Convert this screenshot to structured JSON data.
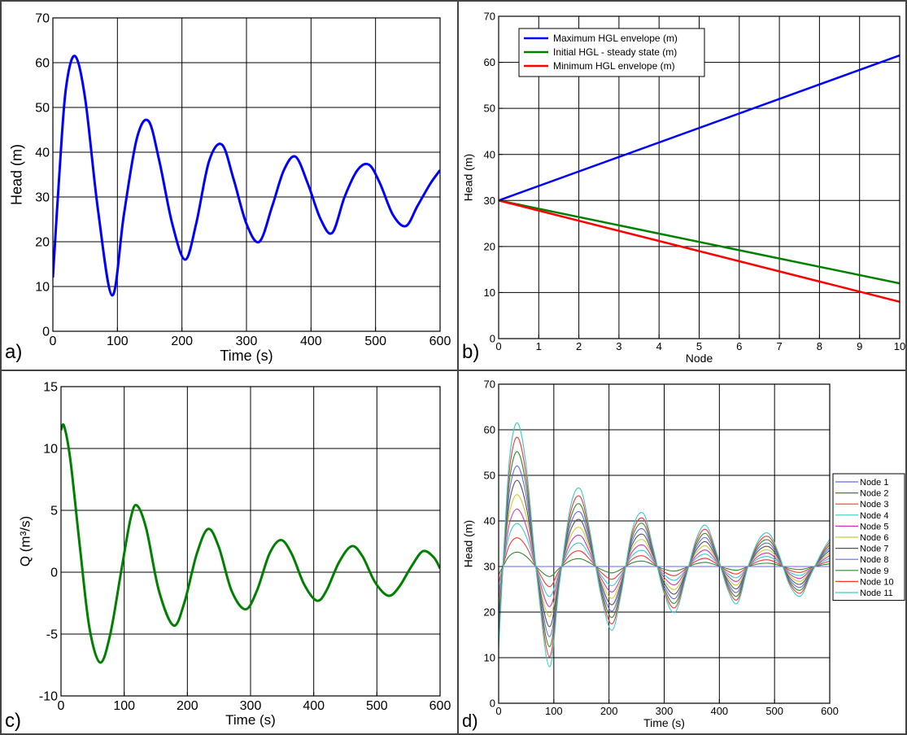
{
  "chart_data": [
    {
      "panel": "a)",
      "type": "line",
      "xlabel": "Time (s)",
      "ylabel": "Head (m)",
      "xlim": [
        0,
        600
      ],
      "ylim": [
        0,
        70
      ],
      "xticks": [
        0,
        100,
        200,
        300,
        400,
        500,
        600
      ],
      "yticks": [
        0,
        10,
        20,
        30,
        40,
        50,
        60,
        70
      ],
      "grid": true,
      "series": [
        {
          "color": "#0000ff",
          "x": [
            0,
            10,
            20,
            34,
            50,
            70,
            92,
            110,
            130,
            148,
            165,
            185,
            205,
            222,
            242,
            262,
            280,
            300,
            320,
            340,
            358,
            376,
            395,
            415,
            433,
            452,
            472,
            490,
            507,
            527,
            547,
            565,
            585,
            600
          ],
          "y": [
            12,
            35,
            54,
            61.5,
            52,
            27,
            8,
            26,
            43,
            47,
            38,
            24,
            16,
            24,
            38,
            41.7,
            34,
            24,
            20,
            28,
            36,
            39,
            33,
            25,
            22,
            30,
            36,
            37.2,
            33,
            26,
            23.5,
            28,
            33,
            36
          ]
        }
      ]
    },
    {
      "panel": "b)",
      "type": "line",
      "xlabel": "Node",
      "ylabel": "Head (m)",
      "xlim": [
        0,
        10
      ],
      "ylim": [
        0,
        70
      ],
      "xticks": [
        0,
        1,
        2,
        3,
        4,
        5,
        6,
        7,
        8,
        9,
        10
      ],
      "yticks": [
        0,
        10,
        20,
        30,
        40,
        50,
        60,
        70
      ],
      "grid": true,
      "legend_position": "top-left",
      "series": [
        {
          "name": "Maximum HGL envelope (m)",
          "color": "#0000ff",
          "x": [
            0,
            10
          ],
          "y": [
            30,
            61.5
          ]
        },
        {
          "name": "Initial HGL - steady state (m)",
          "color": "#008000",
          "x": [
            0,
            10
          ],
          "y": [
            30,
            12
          ]
        },
        {
          "name": "Minimum HGL envelope (m)",
          "color": "#ff0000",
          "x": [
            0,
            10
          ],
          "y": [
            30,
            8
          ]
        }
      ]
    },
    {
      "panel": "c)",
      "type": "line",
      "xlabel": "Time (s)",
      "ylabel": "Q (m³/s)",
      "xlim": [
        0,
        600
      ],
      "ylim": [
        -10,
        15
      ],
      "xticks": [
        0,
        100,
        200,
        300,
        400,
        500,
        600
      ],
      "yticks": [
        -10,
        -5,
        0,
        5,
        10,
        15
      ],
      "grid": true,
      "series": [
        {
          "color": "#008000",
          "x": [
            0,
            5,
            15,
            30,
            45,
            62,
            78,
            95,
            110,
            120,
            135,
            155,
            178,
            195,
            215,
            233,
            250,
            270,
            292,
            310,
            330,
            348,
            365,
            385,
            405,
            420,
            440,
            460,
            477,
            497,
            518,
            535,
            555,
            573,
            590,
            600
          ],
          "y": [
            11.5,
            11.8,
            9,
            2,
            -4.5,
            -7.3,
            -5,
            0,
            4.3,
            5.4,
            3.5,
            -1.5,
            -4.3,
            -2.5,
            1.5,
            3.5,
            2,
            -1.5,
            -3,
            -1.5,
            1.5,
            2.6,
            1.5,
            -1,
            -2.3,
            -1.5,
            0.8,
            2.1,
            1.3,
            -0.8,
            -1.9,
            -1.2,
            0.5,
            1.7,
            1.2,
            0.3
          ]
        }
      ]
    },
    {
      "panel": "d)",
      "type": "line",
      "xlabel": "Time (s)",
      "ylabel": "Head (m)",
      "xlim": [
        0,
        600
      ],
      "ylim": [
        0,
        70
      ],
      "xticks": [
        0,
        100,
        200,
        300,
        400,
        500,
        600
      ],
      "yticks": [
        0,
        10,
        20,
        30,
        40,
        50,
        60,
        70
      ],
      "grid": true,
      "legend_position": "right",
      "base_time": [
        0,
        10,
        20,
        34,
        50,
        70,
        92,
        110,
        130,
        148,
        165,
        185,
        205,
        222,
        242,
        262,
        280,
        300,
        320,
        340,
        358,
        376,
        395,
        415,
        433,
        452,
        472,
        490,
        507,
        527,
        547,
        565,
        585,
        600
      ],
      "base_head": [
        12,
        35,
        54,
        61.5,
        52,
        27,
        8,
        26,
        43,
        47,
        38,
        24,
        16,
        24,
        38,
        41.7,
        34,
        24,
        20,
        28,
        36,
        39,
        33,
        25,
        22,
        30,
        36,
        37.2,
        33,
        26,
        23.5,
        28,
        33,
        36
      ],
      "series": [
        {
          "name": "Node 1",
          "color": "#6666ff",
          "amplitude_factor": 0.0
        },
        {
          "name": "Node 2",
          "color": "#2e8b2e",
          "amplitude_factor": 0.1
        },
        {
          "name": "Node 3",
          "color": "#ff3333",
          "amplitude_factor": 0.2
        },
        {
          "name": "Node 4",
          "color": "#33cccc",
          "amplitude_factor": 0.3
        },
        {
          "name": "Node 5",
          "color": "#cc33cc",
          "amplitude_factor": 0.4
        },
        {
          "name": "Node 6",
          "color": "#cccc33",
          "amplitude_factor": 0.5
        },
        {
          "name": "Node 7",
          "color": "#555555",
          "amplitude_factor": 0.6
        },
        {
          "name": "Node 8",
          "color": "#6666ff",
          "amplitude_factor": 0.7
        },
        {
          "name": "Node 9",
          "color": "#2e8b2e",
          "amplitude_factor": 0.8
        },
        {
          "name": "Node 10",
          "color": "#ff3333",
          "amplitude_factor": 0.9
        },
        {
          "name": "Node 11",
          "color": "#33cccc",
          "amplitude_factor": 1.0
        }
      ]
    }
  ]
}
